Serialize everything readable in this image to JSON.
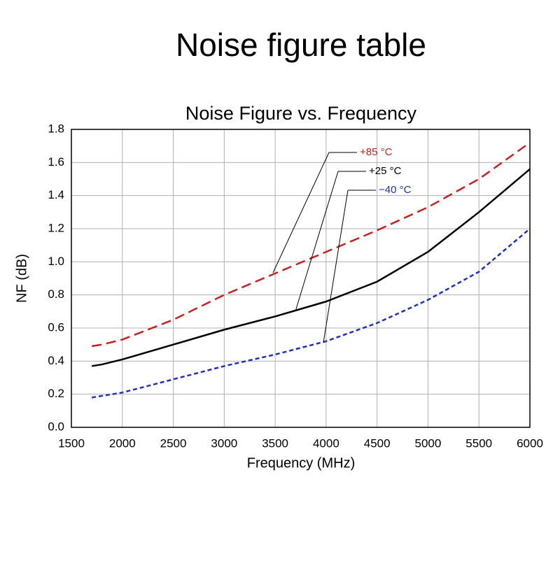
{
  "heading": "Noise figure table",
  "chart_data": {
    "type": "line",
    "title": "Noise Figure vs. Frequency",
    "x_label": "Frequency (MHz)",
    "y_label": "NF (dB)",
    "x": [
      1700,
      1800,
      2000,
      2500,
      3000,
      3500,
      4000,
      4500,
      5000,
      5500,
      6000
    ],
    "series": [
      {
        "name": "+85 °C",
        "color": "#cc1f1f",
        "dash": "long",
        "values": [
          0.49,
          0.5,
          0.53,
          0.65,
          0.8,
          0.93,
          1.06,
          1.19,
          1.33,
          1.5,
          1.72
        ]
      },
      {
        "name": "+25 °C",
        "color": "#000000",
        "dash": "solid",
        "values": [
          0.37,
          0.38,
          0.41,
          0.5,
          0.59,
          0.67,
          0.76,
          0.88,
          1.06,
          1.3,
          1.56
        ]
      },
      {
        "name": "−40 °C",
        "color": "#1f2fbf",
        "dash": "short",
        "values": [
          0.18,
          0.19,
          0.21,
          0.29,
          0.37,
          0.44,
          0.52,
          0.63,
          0.77,
          0.94,
          1.2
        ]
      }
    ],
    "xlim": [
      1500,
      6000
    ],
    "ylim": [
      0,
      1.8
    ],
    "xticks": [
      1500,
      2000,
      2500,
      3000,
      3500,
      4000,
      4500,
      5000,
      5500,
      6000
    ],
    "yticks": [
      {
        "value": 0,
        "label": "0.0"
      },
      0.2,
      0.4,
      0.6,
      0.8,
      {
        "value": 1,
        "label": "1.0"
      },
      1.2,
      1.4,
      1.6,
      1.8
    ],
    "grid": true
  }
}
